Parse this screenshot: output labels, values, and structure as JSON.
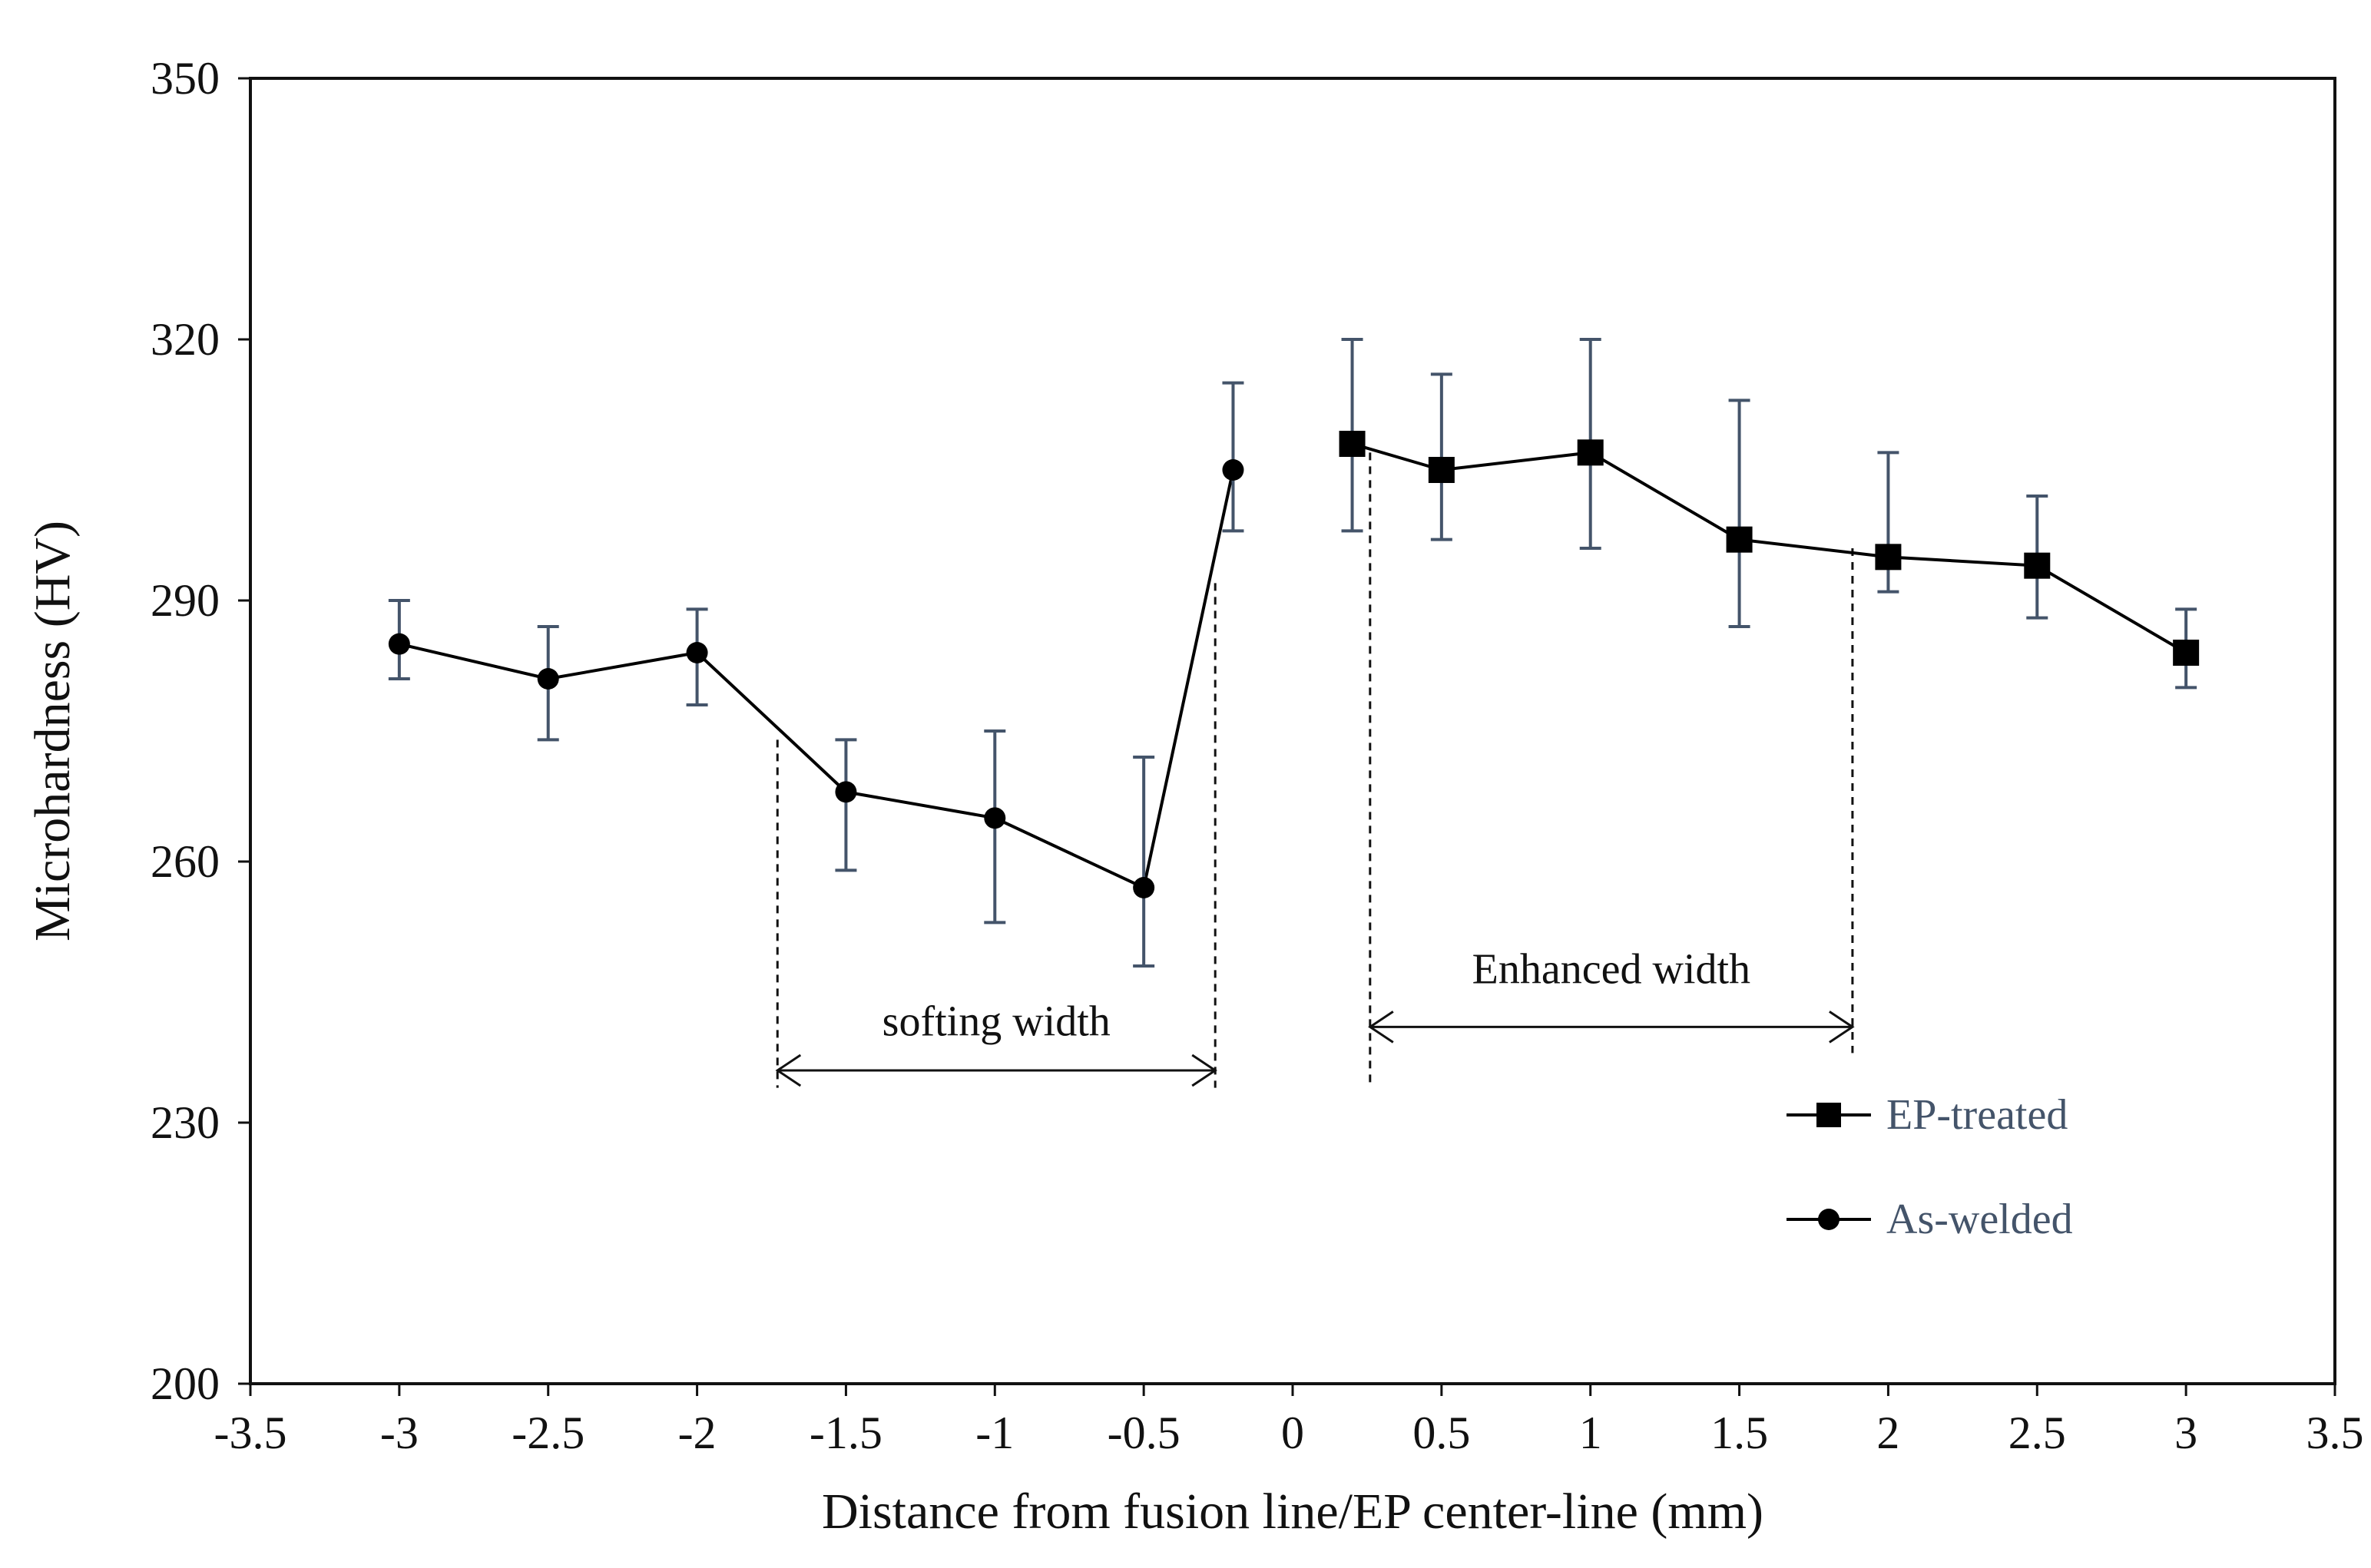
{
  "chart_data": {
    "type": "line",
    "title": "",
    "xlabel": "Distance from fusion line/EP center-line (mm)",
    "ylabel": "Microhardness (HV)",
    "xlim": [
      -3.5,
      3.5
    ],
    "ylim": [
      200,
      350
    ],
    "xticks": [
      -3.5,
      -3,
      -2.5,
      -2,
      -1.5,
      -1,
      -0.5,
      0,
      0.5,
      1,
      1.5,
      2,
      2.5,
      3,
      3.5
    ],
    "xtick_labels": [
      "-3.5",
      "-3",
      "-2.5",
      "-2",
      "-1.5",
      "-1",
      "-0.5",
      "0",
      "0.5",
      "1",
      "1.5",
      "2",
      "2.5",
      "3",
      "3.5"
    ],
    "yticks": [
      200,
      230,
      260,
      290,
      320,
      350
    ],
    "ytick_labels": [
      "200",
      "230",
      "260",
      "290",
      "320",
      "350"
    ],
    "grid": false,
    "legend_position": "bottom-right",
    "series": [
      {
        "name": "EP-treated",
        "marker": "square",
        "color": "#000000",
        "x": [
          0.2,
          0.5,
          1,
          1.5,
          2,
          2.5,
          3
        ],
        "values": [
          308,
          305,
          307,
          297,
          295,
          294,
          284
        ],
        "err_low": [
          298,
          297,
          296,
          287,
          291,
          288,
          280
        ],
        "err_high": [
          320,
          316,
          320,
          313,
          307,
          302,
          289
        ]
      },
      {
        "name": "As-welded",
        "marker": "circle",
        "color": "#000000",
        "x": [
          -3,
          -2.5,
          -2,
          -1.5,
          -1,
          -0.5,
          -0.2
        ],
        "values": [
          285,
          281,
          284,
          268,
          265,
          257,
          305
        ],
        "err_low": [
          281,
          274,
          278,
          259,
          253,
          248,
          298
        ],
        "err_high": [
          290,
          287,
          289,
          274,
          275,
          272,
          315
        ]
      }
    ],
    "annotations": [
      {
        "text": "softing width",
        "x_start": -1.73,
        "x_end": -0.26,
        "arrow_y": 236,
        "label_y": 240,
        "guide_lines": [
          {
            "x": -1.73,
            "y_top": 274,
            "y_bottom": 234
          },
          {
            "x": -0.26,
            "y_top": 292,
            "y_bottom": 234
          }
        ]
      },
      {
        "text": "Enhanced width",
        "x_start": 0.26,
        "x_end": 1.88,
        "arrow_y": 241,
        "label_y": 246,
        "guide_lines": [
          {
            "x": 0.26,
            "y_top": 307,
            "y_bottom": 234
          },
          {
            "x": 1.88,
            "y_top": 296,
            "y_bottom": 238
          }
        ]
      }
    ],
    "colors": {
      "errorbar": "#44546a",
      "legend_text": "#44546a",
      "axis": "#111111"
    }
  }
}
